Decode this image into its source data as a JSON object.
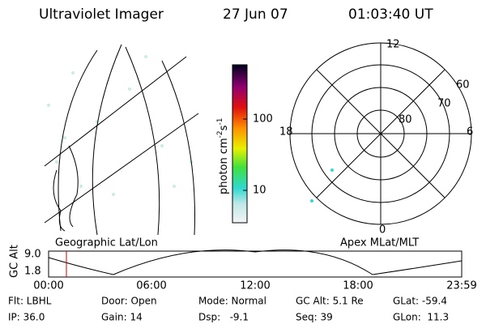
{
  "header": {
    "instrument": "Ultraviolet Imager",
    "date": "27 Jun 07",
    "time": "01:03:40 UT"
  },
  "image_panel": {
    "caption": "Geographic Lat/Lon"
  },
  "colorbar": {
    "unit_parts": [
      "photon cm",
      "-2",
      "s",
      "-1"
    ],
    "tick_labels": [
      "100",
      "10"
    ]
  },
  "polar_panel": {
    "caption": "Apex MLat/MLT",
    "mlt_labels": [
      "12",
      "6",
      "0",
      "18"
    ],
    "mlat_labels": [
      "60",
      "70",
      "80"
    ]
  },
  "altitude_panel": {
    "axis_label": "GC Alt",
    "y_labels": [
      "9.0",
      "1.8"
    ],
    "time_labels": [
      "00:00",
      "06:00",
      "12:00",
      "18:00",
      "23:59"
    ]
  },
  "footer": {
    "rows": [
      [
        "Flt: LBHL",
        "Door: Open",
        "Mode: Normal",
        "GC Alt: 5.1 Re",
        "GLat: -59.4"
      ],
      [
        "IP: 36.0",
        "Gain: 14",
        "Dsp:   -9.1",
        "Seq: 39",
        "GLon:  11.3"
      ]
    ]
  }
}
